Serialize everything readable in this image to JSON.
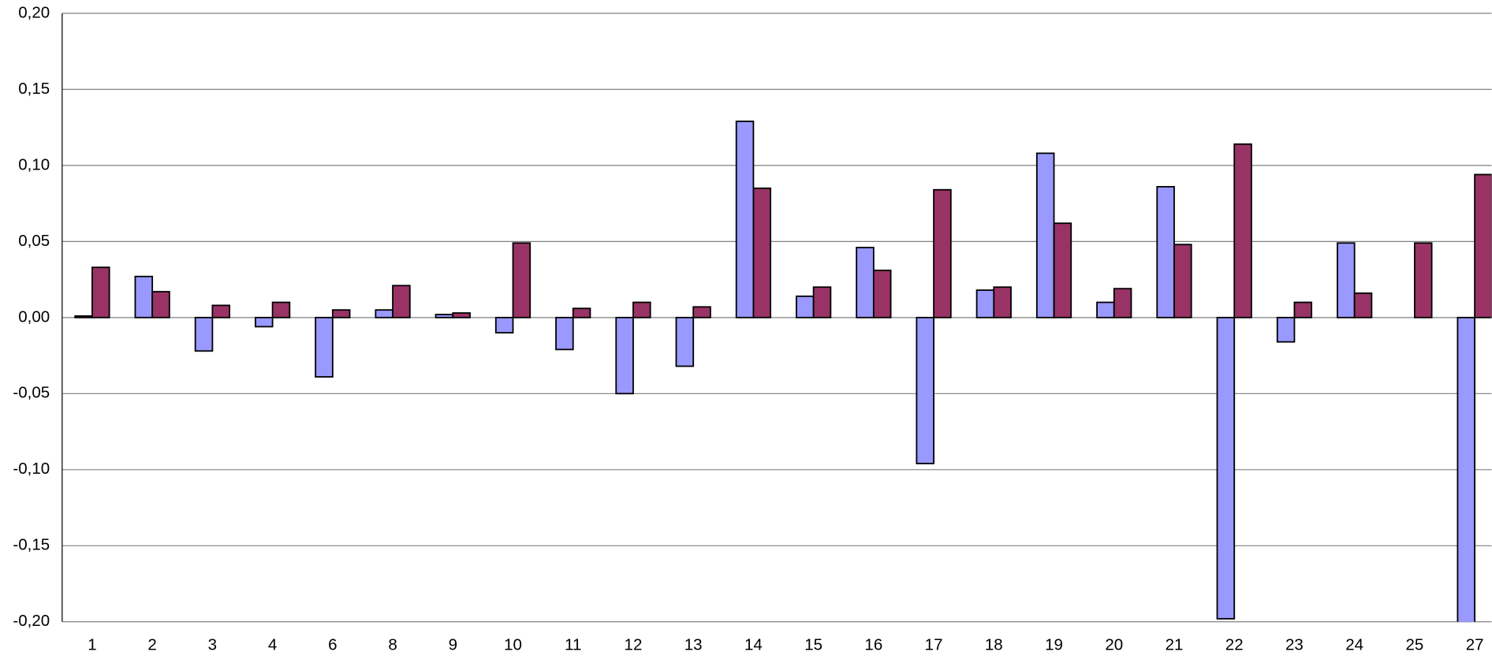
{
  "chart_data": {
    "type": "bar",
    "categories": [
      "1",
      "2",
      "3",
      "4",
      "6",
      "8",
      "9",
      "10",
      "11",
      "12",
      "13",
      "14",
      "15",
      "16",
      "17",
      "18",
      "19",
      "20",
      "21",
      "22",
      "23",
      "24",
      "25",
      "27"
    ],
    "series": [
      {
        "color": "#9999ff",
        "values": [
          0.001,
          0.027,
          -0.022,
          -0.006,
          -0.039,
          0.005,
          0.002,
          -0.01,
          -0.021,
          -0.05,
          -0.032,
          0.129,
          0.014,
          0.046,
          -0.096,
          0.018,
          0.108,
          0.01,
          0.086,
          -0.198,
          -0.016,
          0.049,
          null,
          -0.22
        ]
      },
      {
        "color": "#993366",
        "values": [
          0.033,
          0.017,
          0.008,
          0.01,
          0.005,
          0.021,
          0.003,
          0.049,
          0.006,
          0.01,
          0.007,
          0.085,
          0.02,
          0.031,
          0.084,
          0.02,
          0.062,
          0.019,
          0.048,
          0.114,
          0.01,
          0.016,
          0.049,
          0.094
        ]
      }
    ],
    "ylim": [
      -0.2,
      0.2
    ],
    "yticks": [
      {
        "value": -0.2,
        "label": "-0,20"
      },
      {
        "value": -0.15,
        "label": "-0,15"
      },
      {
        "value": -0.1,
        "label": "-0,10"
      },
      {
        "value": -0.05,
        "label": "-0,05"
      },
      {
        "value": 0,
        "label": "0,00"
      },
      {
        "value": 0.05,
        "label": "0,05"
      },
      {
        "value": 0.1,
        "label": "0,10"
      },
      {
        "value": 0.15,
        "label": "0,15"
      },
      {
        "value": 0.2,
        "label": "0,20"
      }
    ],
    "grid": true
  }
}
